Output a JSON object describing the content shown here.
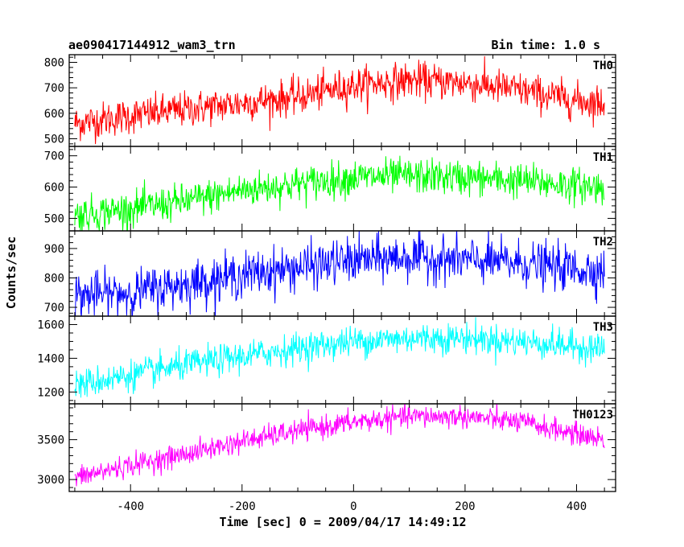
{
  "header": {
    "title": "ae090417144912_wam3_trn",
    "bin_time": "Bin time: 1.0 s"
  },
  "chart_data": {
    "type": "line",
    "title": "ae090417144912_wam3_trn",
    "xlabel": "Time [sec] 0 = 2009/04/17 14:49:12",
    "ylabel": "Counts/sec",
    "xlim": [
      -510,
      470
    ],
    "xticks": [
      -400,
      -200,
      0,
      200,
      400
    ],
    "x_range_data": [
      -500,
      450
    ],
    "panels": [
      {
        "name": "TH0",
        "color": "#ff0000",
        "ylim": [
          470,
          830
        ],
        "yticks": [
          500,
          600,
          700,
          800
        ],
        "trend": [
          [
            -500,
            560
          ],
          [
            -400,
            590
          ],
          [
            -300,
            615
          ],
          [
            -200,
            640
          ],
          [
            -100,
            665
          ],
          [
            0,
            710
          ],
          [
            100,
            730
          ],
          [
            200,
            720
          ],
          [
            300,
            690
          ],
          [
            400,
            650
          ],
          [
            450,
            640
          ]
        ],
        "noise": 35
      },
      {
        "name": "TH1",
        "color": "#00ff00",
        "ylim": [
          460,
          730
        ],
        "yticks": [
          500,
          600,
          700
        ],
        "trend": [
          [
            -500,
            510
          ],
          [
            -400,
            530
          ],
          [
            -300,
            555
          ],
          [
            -200,
            590
          ],
          [
            -100,
            610
          ],
          [
            0,
            630
          ],
          [
            100,
            635
          ],
          [
            200,
            630
          ],
          [
            300,
            620
          ],
          [
            400,
            605
          ],
          [
            450,
            600
          ]
        ],
        "noise": 28
      },
      {
        "name": "TH2",
        "color": "#0000ff",
        "ylim": [
          670,
          960
        ],
        "yticks": [
          700,
          800,
          900
        ],
        "trend": [
          [
            -500,
            740
          ],
          [
            -400,
            750
          ],
          [
            -300,
            780
          ],
          [
            -200,
            810
          ],
          [
            -100,
            835
          ],
          [
            0,
            860
          ],
          [
            100,
            870
          ],
          [
            200,
            860
          ],
          [
            300,
            850
          ],
          [
            400,
            830
          ],
          [
            450,
            825
          ]
        ],
        "noise": 38
      },
      {
        "name": "TH3",
        "color": "#00ffff",
        "ylim": [
          1130,
          1650
        ],
        "yticks": [
          1200,
          1400,
          1600
        ],
        "trend": [
          [
            -500,
            1240
          ],
          [
            -400,
            1300
          ],
          [
            -300,
            1360
          ],
          [
            -200,
            1410
          ],
          [
            -100,
            1460
          ],
          [
            0,
            1500
          ],
          [
            100,
            1520
          ],
          [
            200,
            1520
          ],
          [
            300,
            1500
          ],
          [
            400,
            1470
          ],
          [
            450,
            1460
          ]
        ],
        "noise": 45
      },
      {
        "name": "TH0123",
        "color": "#ff00ff",
        "ylim": [
          2850,
          3950
        ],
        "yticks": [
          3000,
          3500
        ],
        "trend": [
          [
            -500,
            3020
          ],
          [
            -400,
            3180
          ],
          [
            -300,
            3320
          ],
          [
            -200,
            3480
          ],
          [
            -100,
            3610
          ],
          [
            0,
            3720
          ],
          [
            100,
            3790
          ],
          [
            200,
            3790
          ],
          [
            300,
            3720
          ],
          [
            400,
            3570
          ],
          [
            450,
            3500
          ]
        ],
        "noise": 70
      }
    ]
  }
}
